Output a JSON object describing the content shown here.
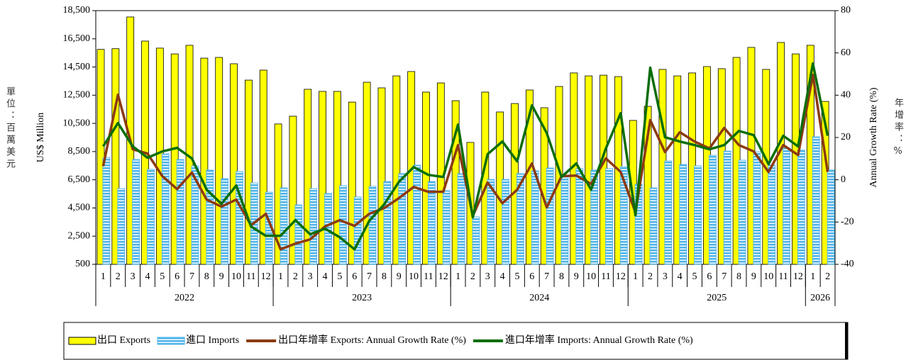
{
  "chart_data": {
    "type": "bar",
    "ylabel": "US$ Million",
    "ylabel_cn": "單位：百萬美元",
    "y2label": "Annual Growth Rate (%)",
    "y2label_cn": "年增率：%",
    "categories": [
      "1",
      "2",
      "3",
      "4",
      "5",
      "6",
      "7",
      "8",
      "9",
      "10",
      "11",
      "12",
      "1",
      "2",
      "3",
      "4",
      "5",
      "6",
      "7",
      "8",
      "9",
      "10",
      "11",
      "12",
      "1",
      "2",
      "3",
      "4",
      "5",
      "6",
      "7",
      "8",
      "9",
      "10",
      "11",
      "12",
      "1",
      "2",
      "3",
      "4",
      "5",
      "6",
      "7",
      "8",
      "9",
      "10",
      "11",
      "12",
      "1",
      "2"
    ],
    "years": [
      "2022",
      "2023",
      "2024",
      "2025",
      "2026"
    ],
    "ylim": [
      500,
      18500
    ],
    "yticks": [
      500,
      {
        "value": 2500,
        "label": "2,500"
      },
      {
        "value": 4500,
        "label": "4,500"
      },
      {
        "value": 6500,
        "label": "6,500"
      },
      {
        "value": 8500,
        "label": "8,500"
      },
      {
        "value": 10500,
        "label": "10,500"
      },
      {
        "value": 12500,
        "label": "12,500"
      },
      {
        "value": 14500,
        "label": "14,500"
      },
      {
        "value": 16500,
        "label": "16,500"
      },
      {
        "value": 18500,
        "label": "18,500"
      }
    ],
    "y2lim": [
      -40,
      80
    ],
    "y2ticks": [
      -40,
      -20,
      0,
      20,
      40,
      60,
      80
    ],
    "series": [
      {
        "name": "出口 Exports",
        "type": "bar",
        "color": "#ffff00",
        "values": [
          15750,
          15800,
          18050,
          16340,
          15840,
          15430,
          16040,
          15130,
          15180,
          14730,
          13570,
          14280,
          10460,
          11010,
          12920,
          12770,
          12770,
          12010,
          13420,
          13020,
          13870,
          14180,
          12720,
          13370,
          12110,
          9150,
          12720,
          11310,
          11910,
          12870,
          11610,
          13120,
          14080,
          13870,
          13920,
          13820,
          10710,
          11710,
          14330,
          13870,
          14080,
          14530,
          14380,
          15180,
          15890,
          14330,
          16240,
          15430,
          16040,
          12060
        ]
      },
      {
        "name": "進口 Imports",
        "type": "bar",
        "color": "#4fb3e8",
        "values": [
          8090,
          5880,
          7940,
          7240,
          8340,
          7940,
          7490,
          7190,
          6580,
          7090,
          6280,
          5630,
          5930,
          4720,
          5880,
          5530,
          6080,
          5280,
          6030,
          6380,
          6940,
          7540,
          6380,
          5730,
          6940,
          3870,
          6530,
          6530,
          6940,
          7140,
          7340,
          6680,
          7290,
          7190,
          7290,
          7440,
          6180,
          5930,
          7840,
          7590,
          7490,
          8240,
          8540,
          7890,
          8490,
          7540,
          8740,
          8600,
          9550,
          7190
        ]
      },
      {
        "name": "出口年增率 Exports: Annual Growth Rate (%)",
        "type": "line",
        "axis": "y2",
        "color": "#8b3a12",
        "values": [
          6.4,
          40.2,
          14.4,
          12.4,
          1.7,
          -4.4,
          3.4,
          -9.4,
          -12.7,
          -9.4,
          -21.5,
          -16.1,
          -32.9,
          -30.2,
          -28.2,
          -22.1,
          -19.1,
          -21.8,
          -16.1,
          -13.4,
          -8.7,
          -3.4,
          -5.7,
          -5.7,
          16.4,
          -17.1,
          -1.3,
          -11.1,
          -4.7,
          7.7,
          -13.1,
          1.7,
          2.0,
          -2.0,
          10.1,
          3.7,
          -15.4,
          28.2,
          13.1,
          22.5,
          18.1,
          14.8,
          24.5,
          16.4,
          13.4,
          3.7,
          16.4,
          11.7,
          49.6,
          3.7
        ]
      },
      {
        "name": "進口年增率 Imports: Annual Growth Rate (%)",
        "type": "line",
        "axis": "y2",
        "color": "#0b6e0b",
        "values": [
          15.8,
          26.8,
          15.8,
          10.4,
          13.4,
          15.1,
          10.1,
          -4.7,
          -11.4,
          -2.7,
          -22.1,
          -26.5,
          -26.5,
          -19.1,
          -25.8,
          -23.1,
          -27.2,
          -32.9,
          -19.4,
          -11.7,
          -1.0,
          6.0,
          2.3,
          1.3,
          26.1,
          -17.8,
          12.1,
          18.1,
          8.7,
          35.2,
          22.1,
          1.3,
          7.7,
          -4.7,
          14.8,
          31.5,
          -16.8,
          53.0,
          20.1,
          18.1,
          16.4,
          14.4,
          16.4,
          23.1,
          21.1,
          7.4,
          20.8,
          15.8,
          55.0,
          20.8
        ]
      }
    ]
  }
}
